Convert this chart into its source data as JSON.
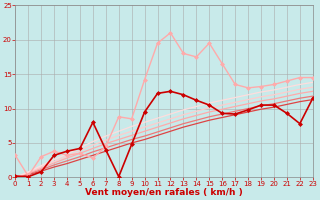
{
  "xlabel": "Vent moyen/en rafales ( km/h )",
  "xlim": [
    0,
    23
  ],
  "ylim": [
    0,
    25
  ],
  "xticks": [
    0,
    1,
    2,
    3,
    4,
    5,
    6,
    7,
    8,
    9,
    10,
    11,
    12,
    13,
    14,
    15,
    16,
    17,
    18,
    19,
    20,
    21,
    22,
    23
  ],
  "yticks": [
    0,
    5,
    10,
    15,
    20,
    25
  ],
  "background_color": "#c8eaea",
  "grid_color": "#aaaaaa",
  "x": [
    0,
    1,
    2,
    3,
    4,
    5,
    6,
    7,
    8,
    9,
    10,
    11,
    12,
    13,
    14,
    15,
    16,
    17,
    18,
    19,
    20,
    21,
    22,
    23
  ],
  "lines": [
    {
      "y": [
        0.2,
        0.1,
        0.8,
        3.2,
        3.8,
        4.2,
        8.0,
        4.0,
        0.1,
        4.8,
        9.5,
        12.2,
        12.5,
        12.0,
        11.2,
        10.5,
        9.3,
        9.2,
        9.8,
        10.5,
        10.5,
        9.3,
        7.8,
        11.5
      ],
      "color": "#cc0000",
      "lw": 1.2,
      "marker": "D",
      "ms": 2.0,
      "zorder": 5
    },
    {
      "y": [
        3.2,
        0.2,
        3.0,
        3.8,
        3.2,
        3.5,
        2.8,
        4.5,
        8.8,
        8.5,
        14.2,
        19.5,
        21.0,
        18.0,
        17.5,
        19.5,
        16.5,
        13.5,
        13.0,
        13.2,
        13.5,
        14.0,
        14.5,
        14.5
      ],
      "color": "#ffaaaa",
      "lw": 1.0,
      "marker": "D",
      "ms": 2.0,
      "zorder": 4
    },
    {
      "y": [
        0.0,
        0.4,
        0.9,
        1.5,
        2.0,
        2.6,
        3.2,
        3.8,
        4.4,
        5.0,
        5.5,
        6.1,
        6.7,
        7.3,
        7.8,
        8.3,
        8.7,
        9.1,
        9.5,
        9.9,
        10.2,
        10.6,
        11.0,
        11.3
      ],
      "color": "#dd4444",
      "lw": 0.9,
      "marker": null,
      "ms": 0,
      "zorder": 3
    },
    {
      "y": [
        0.0,
        0.5,
        1.1,
        1.8,
        2.4,
        3.0,
        3.7,
        4.3,
        4.9,
        5.5,
        6.0,
        6.6,
        7.2,
        7.8,
        8.3,
        8.8,
        9.2,
        9.6,
        10.0,
        10.4,
        10.7,
        11.1,
        11.5,
        11.8
      ],
      "color": "#ee7777",
      "lw": 0.9,
      "marker": null,
      "ms": 0,
      "zorder": 3
    },
    {
      "y": [
        0.0,
        0.6,
        1.3,
        2.1,
        2.8,
        3.5,
        4.2,
        4.9,
        5.5,
        6.1,
        6.7,
        7.3,
        7.9,
        8.5,
        9.0,
        9.5,
        9.9,
        10.3,
        10.7,
        11.1,
        11.4,
        11.8,
        12.2,
        12.5
      ],
      "color": "#ffaaaa",
      "lw": 0.9,
      "marker": null,
      "ms": 0,
      "zorder": 3
    },
    {
      "y": [
        0.0,
        0.7,
        1.5,
        2.3,
        3.1,
        3.9,
        4.7,
        5.4,
        6.1,
        6.7,
        7.3,
        7.9,
        8.5,
        9.1,
        9.6,
        10.1,
        10.5,
        10.9,
        11.3,
        11.7,
        12.0,
        12.4,
        12.8,
        13.1
      ],
      "color": "#ffcccc",
      "lw": 0.9,
      "marker": null,
      "ms": 0,
      "zorder": 3
    },
    {
      "y": [
        0.0,
        0.8,
        1.7,
        2.6,
        3.4,
        4.3,
        5.2,
        6.0,
        6.7,
        7.4,
        8.0,
        8.6,
        9.2,
        9.8,
        10.3,
        10.8,
        11.2,
        11.6,
        12.0,
        12.4,
        12.7,
        13.1,
        13.5,
        13.8
      ],
      "color": "#ffdddd",
      "lw": 0.9,
      "marker": null,
      "ms": 0,
      "zorder": 3
    }
  ],
  "xlabel_color": "#cc0000",
  "tick_color": "#cc0000",
  "tick_fontsize": 5,
  "label_fontsize": 6.5
}
